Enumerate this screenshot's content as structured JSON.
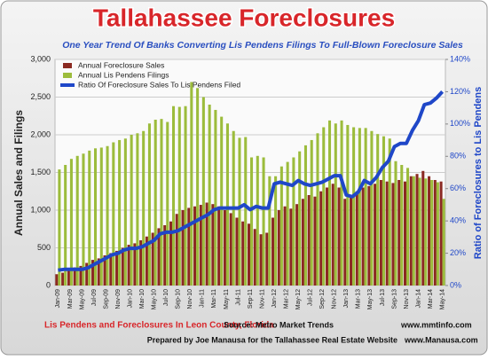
{
  "chart_data": {
    "type": "bar",
    "title": "Tallahassee Foreclosures",
    "subtitle": "One Year Trend Of Banks Converting Lis Pendens Filings To Full-Blown Foreclosure Sales",
    "y_label": "Annual Sales and Filings",
    "y2_label": "Ratio of Foreclosures to Lis Pendens",
    "footer_left": "Lis Pendens and Foreclosures In Leon County, Florida",
    "source": "Source: Metro Market Trends",
    "source_url": "www.mmtinfo.com",
    "prepared": "Prepared by Joe Manausa for the Tallahassee Real Estate Website",
    "prepared_url": "www.Manausa.com",
    "categories": [
      "Jan-09",
      null,
      "Mar-09",
      null,
      "May-09",
      null,
      "Jul-09",
      null,
      "Sep-09",
      null,
      "Nov-09",
      null,
      "Jan-10",
      null,
      "Mar-10",
      null,
      "May-10",
      null,
      "Jul-10",
      null,
      "Sep-10",
      null,
      "Nov-10",
      null,
      "Jan-11",
      null,
      "Mar-11",
      null,
      "May-11",
      null,
      "Jul-11",
      null,
      "Sep-11",
      null,
      "Nov-11",
      null,
      "Jan-12",
      null,
      "Mar-12",
      null,
      "May-12",
      null,
      "Jul-12",
      null,
      "Sep-12",
      null,
      "Nov-12",
      null,
      "Jan-13",
      null,
      "Mar-13",
      null,
      "May-13",
      null,
      "Jul-13",
      null,
      "Sep-13",
      null,
      "Nov-13",
      null,
      "Jan-14",
      null,
      "Mar-14",
      null,
      "May-14"
    ],
    "series": [
      {
        "name": "Annual Foreclosure Sales",
        "color": "#8b2a22",
        "values": [
          150,
          170,
          200,
          240,
          260,
          300,
          340,
          360,
          400,
          430,
          460,
          500,
          540,
          560,
          600,
          650,
          700,
          760,
          800,
          850,
          950,
          1000,
          1030,
          1050,
          1070,
          1100,
          1080,
          1050,
          1000,
          960,
          900,
          850,
          820,
          750,
          680,
          700,
          900,
          1000,
          1050,
          1020,
          1080,
          1150,
          1200,
          1180,
          1250,
          1300,
          1350,
          1300,
          1150,
          1180,
          1250,
          1300,
          1320,
          1350,
          1400,
          1380,
          1360,
          1400,
          1380,
          1450,
          1480,
          1520,
          1450,
          1400,
          1380
        ]
      },
      {
        "name": "Annual Lis Pendens Filings",
        "color": "#9cbc3c",
        "values": [
          1540,
          1600,
          1680,
          1720,
          1750,
          1790,
          1820,
          1830,
          1850,
          1900,
          1930,
          1950,
          2000,
          2020,
          2050,
          2150,
          2200,
          2210,
          2170,
          2380,
          2370,
          2380,
          2700,
          2620,
          2500,
          2400,
          2330,
          2240,
          2150,
          2050,
          1960,
          1970,
          1700,
          1720,
          1700,
          1450,
          1450,
          1580,
          1640,
          1700,
          1780,
          1860,
          1930,
          2020,
          2100,
          2190,
          2150,
          2190,
          2130,
          2100,
          2090,
          2090,
          2050,
          2010,
          1980,
          1950,
          1650,
          1600,
          1560,
          1450,
          1430,
          1420,
          1400,
          1370,
          1150
        ]
      },
      {
        "name": "Ratio Of Foreclosure Sales To Lis Pendens Filed",
        "color": "#1f47c8",
        "axis": "y2",
        "values": [
          9.5,
          10,
          10,
          10,
          10,
          11,
          13,
          15,
          17,
          19,
          20,
          22,
          23,
          23,
          24,
          26,
          28,
          32,
          33,
          33,
          34,
          36,
          38,
          40,
          42,
          44,
          47,
          48,
          48,
          48,
          48,
          50,
          47,
          49,
          48,
          48,
          63,
          64,
          63,
          62,
          65,
          63,
          62,
          63,
          64,
          66,
          68,
          68,
          56,
          55,
          58,
          65,
          63,
          67,
          73,
          77,
          86,
          88,
          88,
          96,
          102,
          112,
          113,
          116,
          120
        ]
      }
    ],
    "ylim": [
      0,
      3000
    ],
    "yticks": [
      0,
      500,
      {
        "value": 1000,
        "label": "1,000"
      },
      {
        "value": 1500,
        "label": "1,500"
      },
      {
        "value": 2000,
        "label": "2,000"
      },
      {
        "value": 2500,
        "label": "2,500"
      },
      {
        "value": 3000,
        "label": "3,000"
      }
    ],
    "y2lim": [
      0,
      140
    ],
    "y2ticks": [
      {
        "value": 0,
        "label": "0%"
      },
      {
        "value": 20,
        "label": "20%"
      },
      {
        "value": 40,
        "label": "40%"
      },
      {
        "value": 60,
        "label": "60%"
      },
      {
        "value": 80,
        "label": "80%"
      },
      {
        "value": 100,
        "label": "100%"
      },
      {
        "value": 120,
        "label": "120%"
      },
      {
        "value": 140,
        "label": "140%"
      }
    ],
    "grid": true,
    "legend": "top-left"
  }
}
